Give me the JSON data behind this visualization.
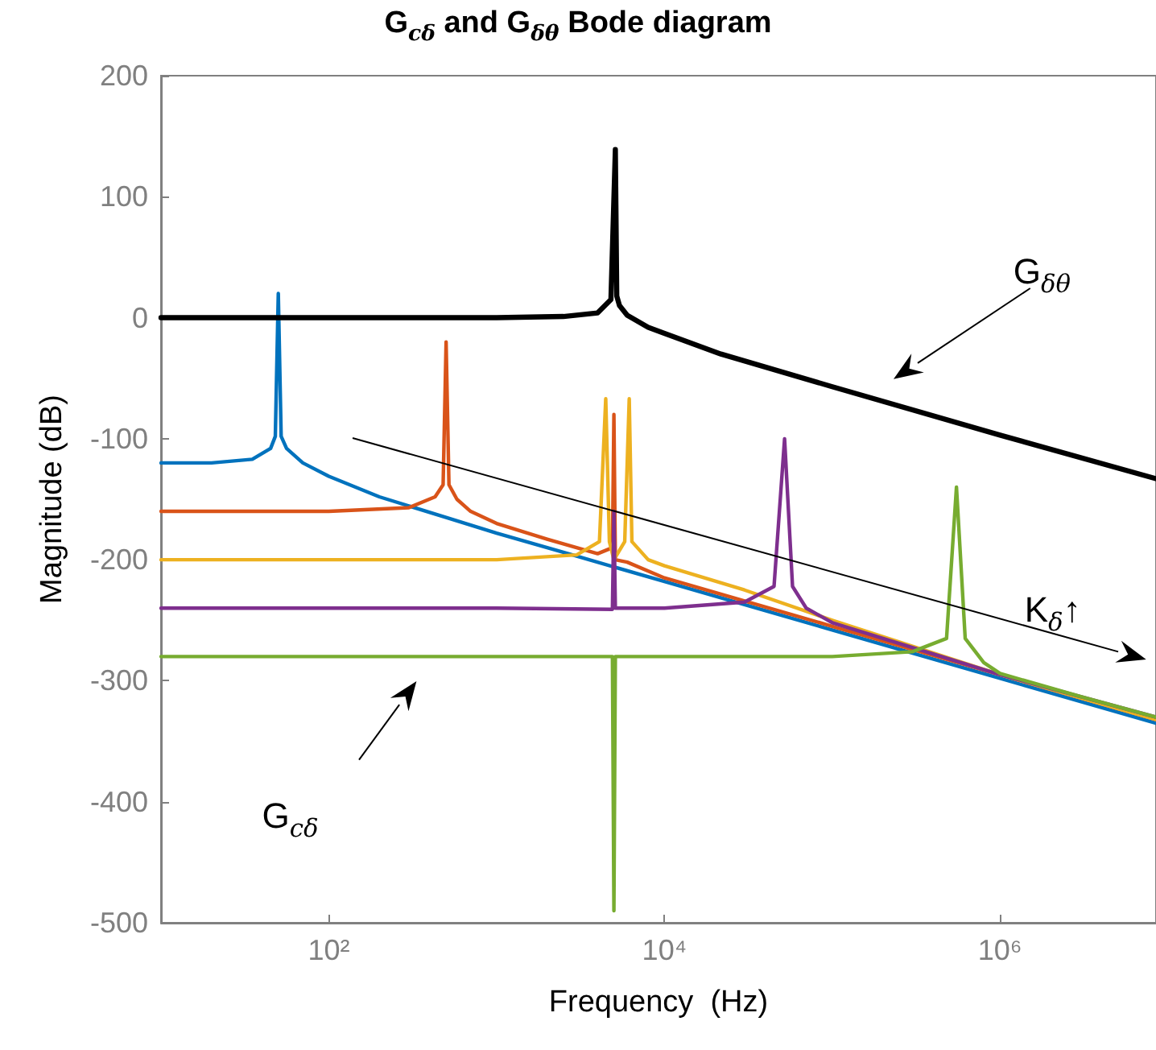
{
  "chart_data": {
    "type": "line",
    "title": "G$_{cδ}$ and G$_{δθ}$ Bode diagram",
    "xlabel": "Frequency  (Hz)",
    "ylabel": "Magnitude (dB)",
    "annotations": [
      "G$_{δθ}$",
      "K$_{δ}$↑",
      "G$_{cδ}$"
    ],
    "log": "x",
    "grid": false,
    "marker": "none",
    "line_style": "solid",
    "xlim": [
      10,
      8500000
    ],
    "xticks": [
      {
        "value": 100,
        "label": "10²"
      },
      {
        "value": 10000,
        "label": "10⁴"
      },
      {
        "value": 1000000,
        "label": "10⁶"
      }
    ],
    "ylim": [
      -500,
      200
    ],
    "yticks": [
      -500,
      -400,
      -300,
      -200,
      -100,
      0,
      100,
      200
    ],
    "series": [
      {
        "color": "#0072bd",
        "x": [
          10,
          20,
          35,
          45,
          48,
          50,
          52,
          56,
          70,
          100,
          200,
          500,
          1000,
          3000,
          10000,
          100000,
          1000000,
          8500000
        ],
        "values": [
          -120,
          -120,
          -117,
          -108,
          -98,
          20,
          -98,
          -108,
          -120,
          -131,
          -148,
          -165,
          -178,
          -197,
          -218,
          -258,
          -298,
          -335
        ]
      },
      {
        "color": "#d95319",
        "x": [
          10,
          100,
          300,
          430,
          480,
          500,
          520,
          580,
          700,
          1000,
          2000,
          4000,
          4900,
          5000,
          5100,
          6000,
          10000,
          100000,
          1000000,
          8500000
        ],
        "values": [
          -160,
          -160,
          -157,
          -148,
          -138,
          -20,
          -138,
          -150,
          -160,
          -170,
          -183,
          -195,
          -190,
          -80,
          -200,
          -202,
          -215,
          -255,
          -295,
          -332
        ]
      },
      {
        "color": "#edb120",
        "x": [
          10,
          1000,
          3000,
          4100,
          4470,
          4700,
          5000,
          5800,
          6170,
          6400,
          8000,
          10000,
          30000,
          100000,
          1000000,
          8500000
        ],
        "values": [
          -200,
          -200,
          -196,
          -185,
          -67,
          -185,
          -200,
          -185,
          -67,
          -185,
          -200,
          -205,
          -225,
          -250,
          -295,
          -332
        ]
      },
      {
        "color": "#7e2f8e",
        "x": [
          10,
          1000,
          4900,
          5000,
          5100,
          10000,
          30000,
          45000,
          52000,
          58000,
          70000,
          100000,
          1000000,
          8500000
        ],
        "values": [
          -240,
          -240,
          -241,
          -160,
          -240,
          -240,
          -235,
          -222,
          -100,
          -222,
          -240,
          -252,
          -295,
          -330
        ]
      },
      {
        "color": "#77ac30",
        "x": [
          10,
          4900,
          5000,
          5100,
          100000,
          300000,
          480000,
          550000,
          620000,
          800000,
          1000000,
          3000000,
          8500000
        ],
        "values": [
          -280,
          -280,
          -490,
          -280,
          -280,
          -276,
          -265,
          -140,
          -265,
          -285,
          -294,
          -313,
          -330
        ]
      },
      {
        "color": "#000000",
        "x": [
          10,
          100,
          1000,
          2500,
          4000,
          4800,
          5100,
          5200,
          5400,
          6000,
          8000,
          10000,
          21700,
          100000,
          1000000,
          8500000
        ],
        "values": [
          0,
          0,
          0,
          1,
          4,
          15,
          139,
          18,
          10,
          2,
          -8,
          -13,
          -30,
          -57,
          -97,
          -133
        ]
      }
    ]
  }
}
